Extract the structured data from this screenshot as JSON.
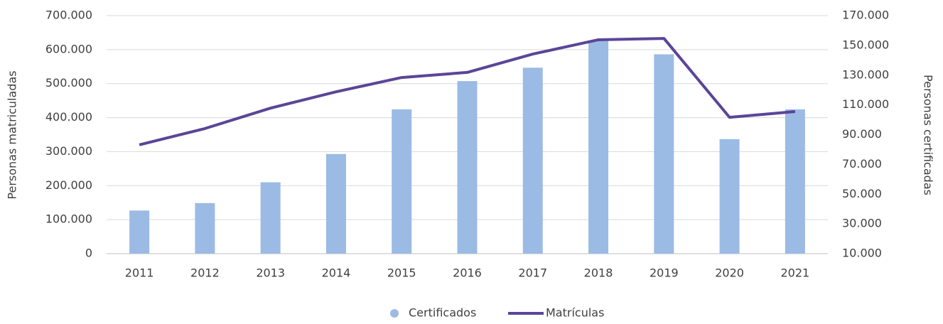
{
  "chart_data": {
    "type": "bar_line",
    "categories": [
      "2011",
      "2012",
      "2013",
      "2014",
      "2015",
      "2016",
      "2017",
      "2018",
      "2019",
      "2020",
      "2021"
    ],
    "series": [
      {
        "name": "Certificados",
        "type": "bar",
        "color": "#9bbbe4",
        "axis": "y2",
        "values": [
          39000,
          44000,
          58000,
          77000,
          107000,
          126000,
          135000,
          153000,
          144000,
          87000,
          107000
        ]
      },
      {
        "name": "Matrículas",
        "type": "line",
        "color": "#5b4597",
        "axis": "y",
        "values": [
          320000,
          368000,
          428000,
          476000,
          518000,
          533000,
          587000,
          629000,
          633000,
          401000,
          418000
        ]
      }
    ],
    "ylabel": "Personas matriculadas",
    "y2label": "Personas certificadas",
    "ylim": [
      0,
      700000
    ],
    "yticks": [
      0,
      {
        "value": 100000,
        "label": "100.000"
      },
      {
        "value": 200000,
        "label": "200.000"
      },
      {
        "value": 300000,
        "label": "300.000"
      },
      {
        "value": 400000,
        "label": "400.000"
      },
      {
        "value": 500000,
        "label": "500.000"
      },
      {
        "value": 600000,
        "label": "600.000"
      },
      {
        "value": 700000,
        "label": "700.000"
      }
    ],
    "y2lim": [
      10000,
      170000
    ],
    "y2ticks": [
      {
        "value": 10000,
        "label": "10.000"
      },
      {
        "value": 30000,
        "label": "30.000"
      },
      {
        "value": 50000,
        "label": "50.000"
      },
      {
        "value": 70000,
        "label": "70.000"
      },
      {
        "value": 90000,
        "label": "90.000"
      },
      {
        "value": 110000,
        "label": "110.000"
      },
      {
        "value": 130000,
        "label": "130.000"
      },
      {
        "value": 150000,
        "label": "150.000"
      },
      {
        "value": 170000,
        "label": "170.000"
      }
    ],
    "grid": true,
    "legend": "bottom"
  }
}
